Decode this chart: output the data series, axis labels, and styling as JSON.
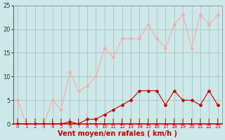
{
  "x": [
    0,
    1,
    2,
    3,
    4,
    5,
    6,
    7,
    8,
    9,
    10,
    11,
    12,
    13,
    14,
    15,
    16,
    17,
    18,
    19,
    20,
    21,
    22,
    23
  ],
  "avg_wind": [
    0,
    0,
    0,
    0,
    0,
    0,
    0.5,
    0,
    1,
    1,
    2,
    3,
    4,
    5,
    7,
    7,
    7,
    4,
    7,
    5,
    5,
    4,
    7,
    4
  ],
  "gust_wind": [
    5,
    0,
    0,
    0,
    5,
    3,
    11,
    7,
    8,
    10,
    16,
    14,
    18,
    18,
    18,
    21,
    18,
    16,
    21,
    23,
    16,
    23,
    21,
    23
  ],
  "avg_color": "#cc0000",
  "gust_color": "#ffaaaa",
  "bg_color": "#cce8e8",
  "grid_color": "#aabbbb",
  "ylim": [
    0,
    25
  ],
  "yticks": [
    0,
    5,
    10,
    15,
    20,
    25
  ],
  "xticks": [
    0,
    1,
    2,
    3,
    4,
    5,
    6,
    7,
    8,
    9,
    10,
    11,
    12,
    13,
    14,
    15,
    16,
    17,
    18,
    19,
    20,
    21,
    22,
    23
  ],
  "xlabel": "Vent moyen/en rafales ( km/h )",
  "marker": "D",
  "markersize": 2.0,
  "linewidth": 0.8,
  "xlabel_fontsize": 7,
  "ytick_fontsize": 6,
  "xtick_fontsize": 5
}
